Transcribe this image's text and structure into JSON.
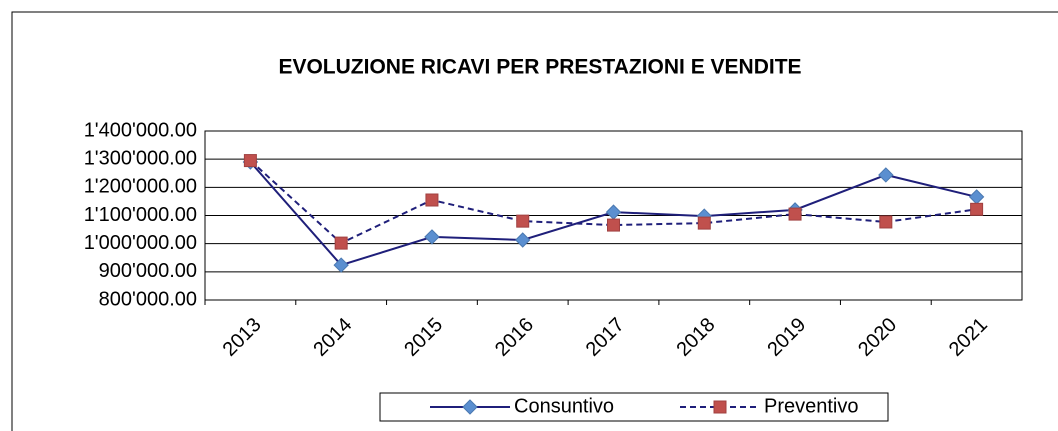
{
  "chart_data": {
    "type": "line",
    "title": "EVOLUZIONE RICAVI PER PRESTAZIONI E  VENDITE",
    "categories": [
      "2013",
      "2014",
      "2015",
      "2016",
      "2017",
      "2018",
      "2019",
      "2020",
      "2021"
    ],
    "series": [
      {
        "name": "Consuntivo",
        "color": "#1f1f7a",
        "marker_color": "#5b8fd0",
        "marker": "diamond",
        "dash": false,
        "values": [
          1290000,
          924000,
          1024000,
          1013000,
          1112000,
          1098000,
          1120000,
          1244000,
          1166000
        ]
      },
      {
        "name": "Preventivo",
        "color": "#1f1f7a",
        "marker_color": "#c0504d",
        "marker": "square",
        "dash": true,
        "values": [
          1295000,
          1002000,
          1155000,
          1080000,
          1066000,
          1073000,
          1105000,
          1077000,
          1122000
        ]
      }
    ],
    "ylim": [
      800000,
      1400000
    ],
    "yticks": [
      {
        "value": 800000,
        "label": "800'000.00"
      },
      {
        "value": 900000,
        "label": "900'000.00"
      },
      {
        "value": 1000000,
        "label": "1'000'000.00"
      },
      {
        "value": 1100000,
        "label": "1'100'000.00"
      },
      {
        "value": 1200000,
        "label": "1'200'000.00"
      },
      {
        "value": 1300000,
        "label": "1'300'000.00"
      },
      {
        "value": 1400000,
        "label": "1'400'000.00"
      }
    ],
    "grid": true,
    "legend": "bottom"
  }
}
